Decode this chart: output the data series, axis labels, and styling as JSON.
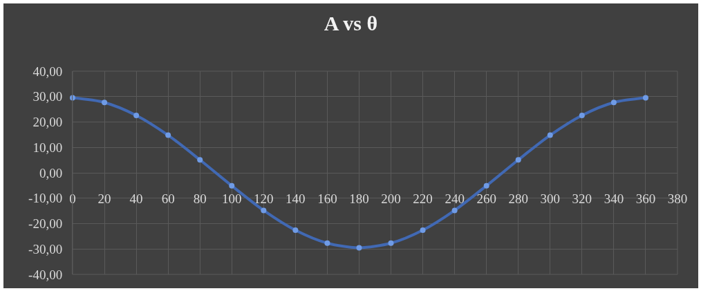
{
  "chart_data": {
    "type": "line",
    "title": "A vs θ",
    "x": [
      0,
      20,
      40,
      60,
      80,
      100,
      120,
      140,
      160,
      180,
      200,
      220,
      240,
      260,
      280,
      300,
      320,
      340,
      360
    ],
    "series": [
      {
        "color": "#4169b4",
        "values": [
          29.5,
          27.7,
          22.6,
          14.8,
          5.1,
          -5.1,
          -14.8,
          -22.6,
          -27.7,
          -29.5,
          -27.7,
          -22.6,
          -14.8,
          -5.1,
          5.1,
          14.8,
          22.6,
          27.7,
          29.5
        ]
      }
    ],
    "xlim": [
      0,
      380
    ],
    "xticks": [
      0,
      20,
      40,
      60,
      80,
      100,
      120,
      140,
      160,
      180,
      200,
      220,
      240,
      260,
      280,
      300,
      320,
      340,
      360,
      380
    ],
    "ylim": [
      -40,
      40
    ],
    "yticks": [
      {
        "value": -40,
        "label": "-40,00"
      },
      {
        "value": -30,
        "label": "-30,00"
      },
      {
        "value": -20,
        "label": "-20,00"
      },
      {
        "value": -10,
        "label": "-10,00"
      },
      {
        "value": 0,
        "label": "0,00"
      },
      {
        "value": 10,
        "label": "10,00"
      },
      {
        "value": 20,
        "label": "20,00"
      },
      {
        "value": 30,
        "label": "30,00"
      },
      {
        "value": 40,
        "label": "40,00"
      }
    ],
    "grid": true,
    "legend": false,
    "marker": "circle",
    "line_style": "solid"
  }
}
